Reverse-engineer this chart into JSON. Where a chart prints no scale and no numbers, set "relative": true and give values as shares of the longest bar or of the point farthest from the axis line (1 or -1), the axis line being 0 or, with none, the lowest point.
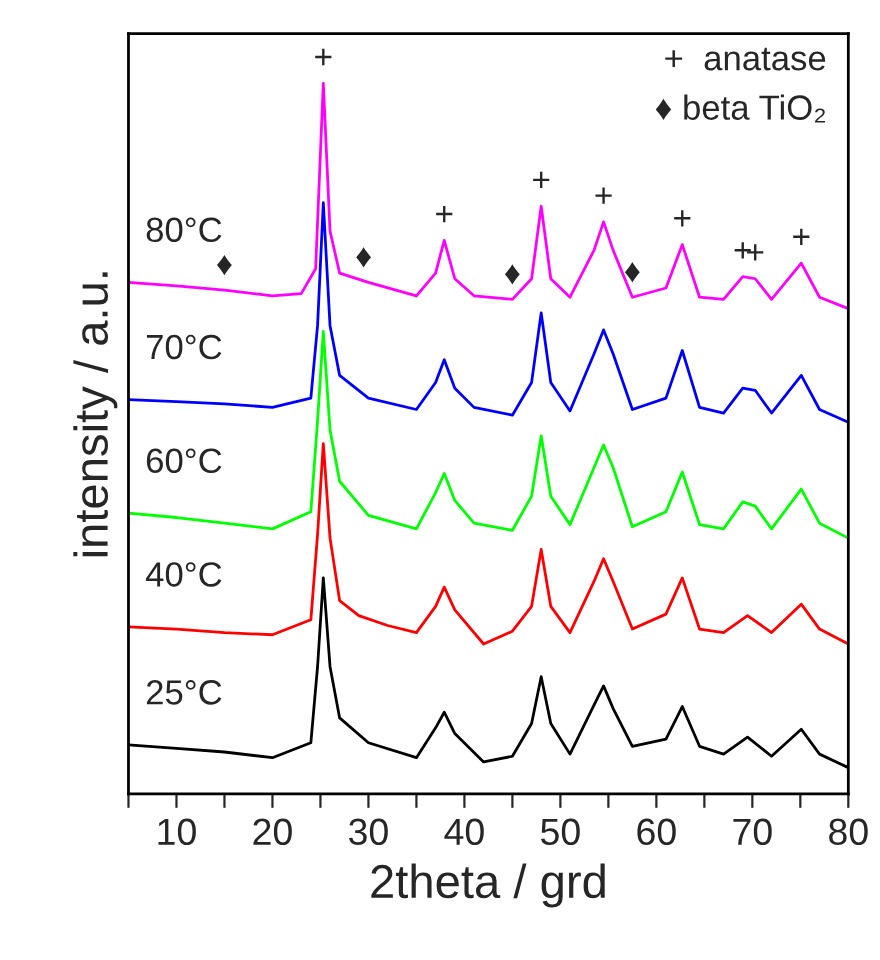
{
  "chart_data": {
    "type": "line",
    "xlabel": "2theta / grd",
    "ylabel": "intensity / a.u.",
    "relative": true,
    "tick_labels": "x",
    "line_style": "solid",
    "marker": "none",
    "xlim": [
      5,
      80
    ],
    "xticks": [
      {
        "value": 5,
        "label": null
      },
      10,
      {
        "value": 15,
        "label": null
      },
      20,
      {
        "value": 25,
        "label": null
      },
      30,
      {
        "value": 35,
        "label": null
      },
      40,
      {
        "value": 45,
        "label": null
      },
      50,
      {
        "value": 55,
        "label": null
      },
      60,
      {
        "value": 65,
        "label": null
      },
      70,
      {
        "value": 75,
        "label": null
      },
      80
    ],
    "series": [
      {
        "name": "25°C",
        "color": "#000000",
        "x": [
          5,
          10,
          15,
          20,
          24,
          24.7,
          25.3,
          26,
          27,
          30,
          35,
          37,
          37.9,
          39,
          42,
          45,
          47,
          48,
          49,
          51,
          53.5,
          54.5,
          55.5,
          57.5,
          61,
          62.7,
          64.5,
          67,
          69.5,
          72,
          75.1,
          77,
          80
        ],
        "values": [
          0.069,
          0.064,
          0.059,
          0.051,
          0.072,
          0.179,
          0.304,
          0.179,
          0.107,
          0.072,
          0.051,
          0.093,
          0.115,
          0.085,
          0.045,
          0.053,
          0.099,
          0.165,
          0.099,
          0.056,
          0.125,
          0.152,
          0.12,
          0.067,
          0.077,
          0.123,
          0.067,
          0.056,
          0.08,
          0.053,
          0.091,
          0.056,
          0.037
        ]
      },
      {
        "name": "40°C",
        "color": "#ff0000",
        "x": [
          5,
          10,
          15,
          20,
          24,
          24.7,
          25.3,
          26,
          27,
          29,
          32,
          35,
          37,
          37.9,
          39,
          42,
          45,
          47,
          48,
          49,
          51,
          53.5,
          54.5,
          55.5,
          57.5,
          61,
          62.7,
          64.5,
          67,
          69.5,
          72,
          75.1,
          77,
          80
        ],
        "values": [
          0.235,
          0.232,
          0.227,
          0.224,
          0.245,
          0.365,
          0.493,
          0.36,
          0.272,
          0.251,
          0.237,
          0.227,
          0.264,
          0.291,
          0.259,
          0.211,
          0.229,
          0.264,
          0.344,
          0.264,
          0.227,
          0.299,
          0.331,
          0.299,
          0.232,
          0.253,
          0.304,
          0.232,
          0.227,
          0.251,
          0.227,
          0.267,
          0.232,
          0.211
        ]
      },
      {
        "name": "60°C",
        "color": "#00ff00",
        "x": [
          5,
          10,
          15,
          20,
          24,
          24.7,
          25.3,
          26,
          27,
          30,
          35,
          37,
          37.9,
          39,
          41,
          45,
          47,
          48,
          49,
          51,
          53.5,
          54.5,
          55.5,
          57.5,
          61,
          62.7,
          64.5,
          67,
          69,
          70.3,
          72,
          75.1,
          77,
          80
        ],
        "values": [
          0.395,
          0.389,
          0.381,
          0.373,
          0.397,
          0.525,
          0.651,
          0.512,
          0.44,
          0.392,
          0.373,
          0.424,
          0.451,
          0.413,
          0.381,
          0.371,
          0.419,
          0.504,
          0.419,
          0.379,
          0.459,
          0.491,
          0.459,
          0.376,
          0.397,
          0.453,
          0.379,
          0.373,
          0.411,
          0.405,
          0.373,
          0.429,
          0.381,
          0.36
        ]
      },
      {
        "name": "70°C",
        "color": "#0000ff",
        "x": [
          5,
          10,
          15,
          20,
          24,
          24.7,
          25.3,
          26,
          27,
          30,
          35,
          37,
          37.9,
          39,
          41,
          45,
          47,
          48,
          49,
          51,
          53.5,
          54.5,
          55.5,
          57.5,
          61,
          62.7,
          64.5,
          67,
          69,
          70.3,
          72,
          75.1,
          77,
          80
        ],
        "values": [
          0.555,
          0.552,
          0.549,
          0.544,
          0.557,
          0.659,
          0.832,
          0.659,
          0.589,
          0.557,
          0.541,
          0.579,
          0.611,
          0.571,
          0.544,
          0.533,
          0.579,
          0.677,
          0.579,
          0.539,
          0.619,
          0.653,
          0.619,
          0.541,
          0.557,
          0.624,
          0.544,
          0.536,
          0.571,
          0.568,
          0.536,
          0.589,
          0.541,
          0.523
        ]
      },
      {
        "name": "80°C",
        "color": "#ff00ff",
        "x": [
          5,
          10,
          15,
          20,
          23,
          24.5,
          25.3,
          26,
          27,
          30,
          35,
          37,
          37.9,
          39,
          41,
          45,
          47,
          48,
          49,
          51,
          53.5,
          54.5,
          55.5,
          57.5,
          61,
          62.7,
          64.5,
          67,
          69,
          70.3,
          72,
          75.1,
          77,
          80
        ],
        "values": [
          0.72,
          0.715,
          0.709,
          0.701,
          0.704,
          0.739,
          1.0,
          0.792,
          0.733,
          0.72,
          0.701,
          0.733,
          0.779,
          0.725,
          0.701,
          0.696,
          0.725,
          0.827,
          0.725,
          0.699,
          0.765,
          0.805,
          0.765,
          0.699,
          0.712,
          0.773,
          0.699,
          0.696,
          0.728,
          0.725,
          0.696,
          0.747,
          0.699,
          0.683
        ]
      }
    ],
    "annotations": [
      {
        "text": "+",
        "x": 25.3,
        "y": 1.0
      },
      {
        "text": "+",
        "x": 37.9,
        "y": 0.779
      },
      {
        "text": "+",
        "x": 48,
        "y": 0.827
      },
      {
        "text": "+",
        "x": 54.5,
        "y": 0.805
      },
      {
        "text": "+",
        "x": 62.7,
        "y": 0.773
      },
      {
        "text": "+",
        "x": 69,
        "y": 0.728
      },
      {
        "text": "+",
        "x": 70.3,
        "y": 0.725
      },
      {
        "text": "+",
        "x": 75.1,
        "y": 0.747
      },
      {
        "text": "♦",
        "x": 15,
        "y": 0.709
      },
      {
        "text": "♦",
        "x": 29.5,
        "y": 0.72
      },
      {
        "text": "♦",
        "x": 45,
        "y": 0.696
      },
      {
        "text": "♦",
        "x": 57.5,
        "y": 0.699
      },
      "+  anatase",
      "♦ beta TiO₂"
    ]
  }
}
